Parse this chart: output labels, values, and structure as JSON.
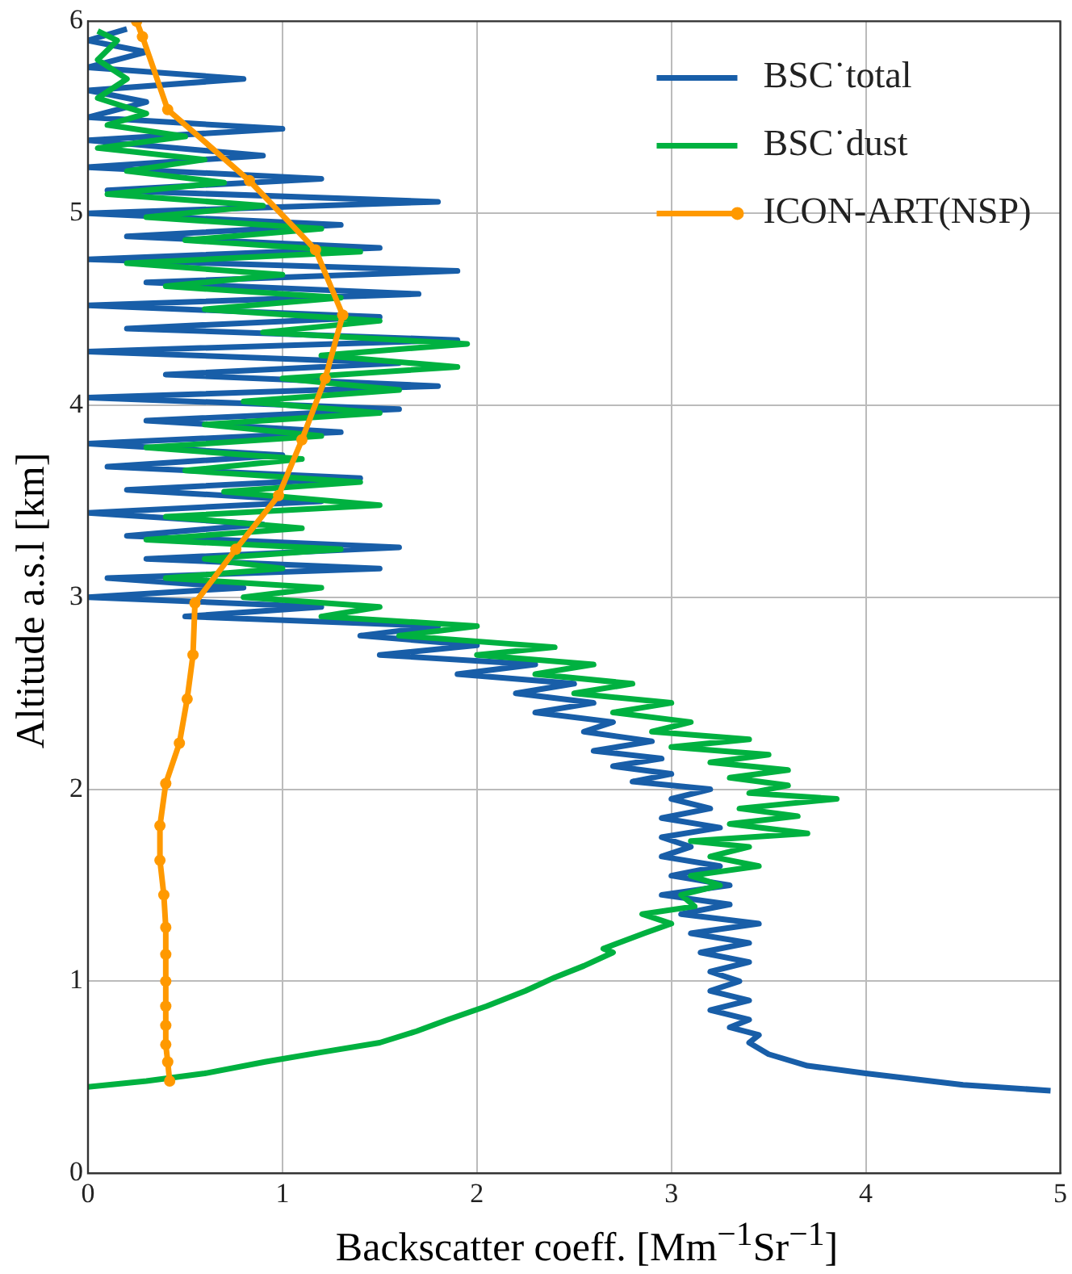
{
  "chart_data": {
    "type": "line",
    "xlabel": "Backscatter coeff. [Mm$^{−1}$Sr$^{−1}$]",
    "ylabel": "Altitude  a.s.l [km]",
    "xlim": [
      0,
      5
    ],
    "ylim": [
      0,
      6
    ],
    "xticks": [
      0,
      1,
      2,
      3,
      4,
      5
    ],
    "yticks": [
      0,
      1,
      2,
      3,
      4,
      5,
      6
    ],
    "grid": true,
    "legend": "top right",
    "series": [
      {
        "name": "BSC˙total",
        "color": "#185ea8",
        "marker": "none",
        "x": [
          4.95,
          4.5,
          4.0,
          3.7,
          3.5,
          3.4,
          3.45,
          3.3,
          3.4,
          3.2,
          3.4,
          3.2,
          3.35,
          3.2,
          3.4,
          3.15,
          3.4,
          3.1,
          3.45,
          3.05,
          3.3,
          2.95,
          3.3,
          3.0,
          3.25,
          2.95,
          3.1,
          2.95,
          3.25,
          2.95,
          3.2,
          3.0,
          3.2,
          2.8,
          3.0,
          2.7,
          2.95,
          2.6,
          2.9,
          2.55,
          2.7,
          2.3,
          2.6,
          2.2,
          2.5,
          1.9,
          2.3,
          1.5,
          2.0,
          1.4,
          1.8,
          0.5,
          1.2,
          0,
          0.8,
          0.1,
          1.5,
          0.3,
          1.6,
          0.2,
          0.9,
          0,
          1.2,
          0.2,
          1.4,
          0.1,
          1.0,
          0,
          1.3,
          0.3,
          1.6,
          0,
          1.8,
          0.4,
          1.6,
          0,
          1.9,
          0.2,
          1.5,
          0,
          1.7,
          0.3,
          1.9,
          0,
          1.5,
          0.2,
          1.3,
          0,
          1.8,
          0.1,
          1.2,
          0,
          0.9,
          0,
          1.0,
          0,
          0.3,
          0,
          0.8,
          0,
          0.3,
          0,
          0.2
        ],
        "values": [
          0.43,
          0.46,
          0.52,
          0.56,
          0.62,
          0.68,
          0.72,
          0.76,
          0.8,
          0.85,
          0.9,
          0.95,
          1.0,
          1.05,
          1.1,
          1.15,
          1.2,
          1.25,
          1.3,
          1.35,
          1.4,
          1.45,
          1.5,
          1.55,
          1.6,
          1.65,
          1.7,
          1.75,
          1.8,
          1.85,
          1.9,
          1.95,
          2.0,
          2.04,
          2.08,
          2.12,
          2.16,
          2.2,
          2.25,
          2.3,
          2.35,
          2.4,
          2.45,
          2.5,
          2.55,
          2.6,
          2.65,
          2.7,
          2.75,
          2.8,
          2.85,
          2.9,
          2.95,
          3.0,
          3.05,
          3.1,
          3.15,
          3.2,
          3.26,
          3.32,
          3.38,
          3.44,
          3.5,
          3.56,
          3.62,
          3.68,
          3.74,
          3.8,
          3.86,
          3.92,
          3.98,
          4.04,
          4.1,
          4.16,
          4.22,
          4.28,
          4.34,
          4.4,
          4.46,
          4.52,
          4.58,
          4.64,
          4.7,
          4.76,
          4.82,
          4.88,
          4.94,
          5.0,
          5.06,
          5.12,
          5.18,
          5.24,
          5.3,
          5.38,
          5.44,
          5.5,
          5.58,
          5.64,
          5.7,
          5.76,
          5.84,
          5.9,
          5.96
        ]
      },
      {
        "name": "BSC˙dust",
        "color": "#00b140",
        "marker": "none",
        "x": [
          0,
          0.3,
          0.6,
          0.91,
          1.2,
          1.5,
          1.69,
          1.85,
          2.05,
          2.25,
          2.4,
          2.55,
          2.7,
          2.65,
          2.86,
          3.0,
          2.85,
          3.12,
          3.05,
          3.25,
          3.1,
          3.45,
          3.2,
          3.4,
          3.1,
          3.7,
          3.3,
          3.65,
          3.35,
          3.85,
          3.4,
          3.6,
          3.3,
          3.6,
          3.2,
          3.5,
          3.0,
          3.4,
          2.9,
          3.1,
          2.7,
          3.0,
          2.5,
          2.8,
          2.3,
          2.6,
          2.0,
          2.4,
          1.6,
          2.0,
          1.2,
          1.5,
          0.8,
          1.2,
          0.4,
          1.0,
          0.6,
          1.3,
          0.3,
          1.1,
          0.4,
          1.5,
          0.7,
          1.4,
          0.5,
          1.1,
          0.3,
          1.2,
          0.6,
          1.5,
          0.8,
          1.6,
          1.0,
          1.9,
          1.2,
          1.95,
          0.9,
          1.5,
          0.6,
          1.3,
          0.4,
          1.0,
          0.2,
          1.4,
          0.5,
          1.2,
          0.3,
          0.9,
          0.1,
          0.7,
          0.2,
          0.6,
          0.05,
          0.5,
          0.1,
          0.3,
          0.05,
          0.2,
          0.05,
          0.15,
          0.05
        ],
        "values": [
          0.45,
          0.48,
          0.52,
          0.58,
          0.63,
          0.68,
          0.74,
          0.8,
          0.87,
          0.95,
          1.02,
          1.08,
          1.15,
          1.17,
          1.25,
          1.3,
          1.35,
          1.39,
          1.45,
          1.5,
          1.55,
          1.6,
          1.65,
          1.7,
          1.73,
          1.77,
          1.82,
          1.86,
          1.9,
          1.95,
          1.98,
          2.02,
          2.06,
          2.1,
          2.14,
          2.18,
          2.22,
          2.26,
          2.3,
          2.35,
          2.4,
          2.45,
          2.5,
          2.55,
          2.6,
          2.65,
          2.7,
          2.74,
          2.8,
          2.85,
          2.9,
          2.95,
          3.0,
          3.05,
          3.1,
          3.15,
          3.2,
          3.25,
          3.3,
          3.36,
          3.42,
          3.48,
          3.55,
          3.6,
          3.66,
          3.72,
          3.78,
          3.84,
          3.9,
          3.96,
          4.02,
          4.08,
          4.14,
          4.2,
          4.26,
          4.32,
          4.38,
          4.44,
          4.5,
          4.56,
          4.62,
          4.68,
          4.74,
          4.8,
          4.86,
          4.92,
          4.98,
          5.04,
          5.1,
          5.16,
          5.22,
          5.28,
          5.34,
          5.4,
          5.46,
          5.52,
          5.6,
          5.7,
          5.8,
          5.9,
          5.95
        ]
      },
      {
        "name": "ICON-ART(NSP)",
        "color": "#ff9900",
        "marker": "circle",
        "x": [
          0.42,
          0.41,
          0.4,
          0.4,
          0.4,
          0.4,
          0.4,
          0.4,
          0.39,
          0.37,
          0.37,
          0.4,
          0.47,
          0.51,
          0.54,
          0.55,
          0.76,
          0.98,
          1.1,
          1.22,
          1.31,
          1.17,
          0.83,
          0.41,
          0.28,
          0.25
        ],
        "values": [
          0.48,
          0.58,
          0.67,
          0.77,
          0.87,
          1.0,
          1.14,
          1.28,
          1.45,
          1.63,
          1.81,
          2.03,
          2.24,
          2.47,
          2.7,
          2.97,
          3.25,
          3.53,
          3.82,
          4.14,
          4.47,
          4.81,
          5.17,
          5.54,
          5.92,
          6.0
        ]
      }
    ]
  }
}
